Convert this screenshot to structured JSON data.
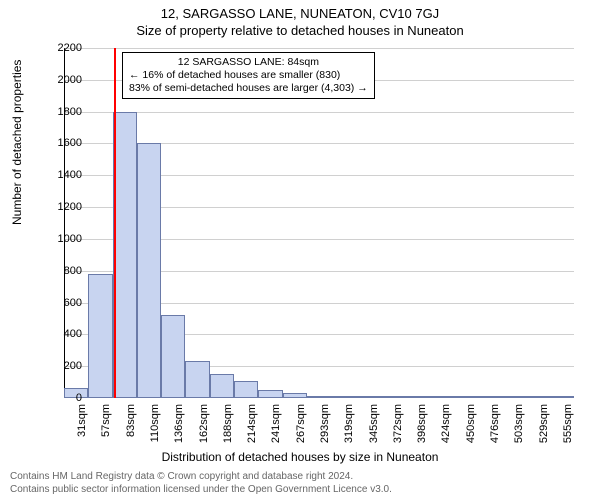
{
  "title_main": "12, SARGASSO LANE, NUNEATON, CV10 7GJ",
  "title_sub": "Size of property relative to detached houses in Nuneaton",
  "y_axis_label": "Number of detached properties",
  "x_axis_label": "Distribution of detached houses by size in Nuneaton",
  "annotation": {
    "line1": "12 SARGASSO LANE: 84sqm",
    "line2": "← 16% of detached houses are smaller (830)",
    "line3": "83% of semi-detached houses are larger (4,303) →"
  },
  "footer": {
    "line1": "Contains HM Land Registry data © Crown copyright and database right 2024.",
    "line2": "Contains public sector information licensed under the Open Government Licence v3.0."
  },
  "chart": {
    "type": "histogram",
    "ylim": [
      0,
      2200
    ],
    "ytick_step": 200,
    "x_categories": [
      "31sqm",
      "57sqm",
      "83sqm",
      "110sqm",
      "136sqm",
      "162sqm",
      "188sqm",
      "214sqm",
      "241sqm",
      "267sqm",
      "293sqm",
      "319sqm",
      "345sqm",
      "372sqm",
      "398sqm",
      "424sqm",
      "450sqm",
      "476sqm",
      "503sqm",
      "529sqm",
      "555sqm"
    ],
    "values": [
      60,
      780,
      1800,
      1600,
      520,
      230,
      150,
      110,
      50,
      30,
      0,
      0,
      0,
      0,
      0,
      0,
      0,
      0,
      0,
      0,
      0
    ],
    "bar_fill": "#c8d4f0",
    "bar_stroke": "#6a7aa8",
    "bar_width_ratio": 1.0,
    "background_color": "#ffffff",
    "grid_color": "rgba(120,120,120,0.35)",
    "marker_line": {
      "x_category_index": 2,
      "position_in_bin": 0.04,
      "color": "#ff0000",
      "width": 2
    },
    "title_fontsize": 13,
    "label_fontsize": 12,
    "tick_fontsize": 11,
    "annotation_fontsize": 10.5
  }
}
